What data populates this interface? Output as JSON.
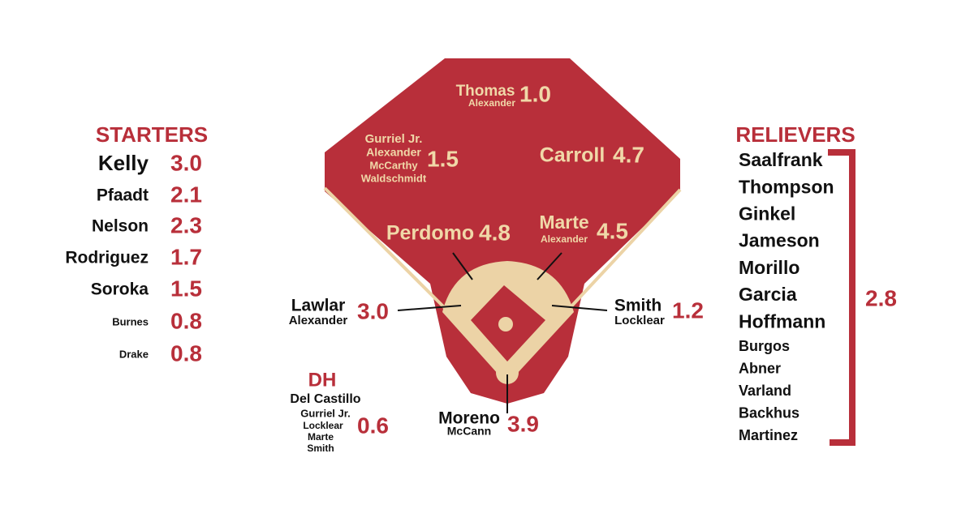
{
  "starters": {
    "title": "STARTERS",
    "players": [
      {
        "name": "Kelly",
        "value": "3.0"
      },
      {
        "name": "Pfaadt",
        "value": "2.1"
      },
      {
        "name": "Nelson",
        "value": "2.3"
      },
      {
        "name": "Rodriguez",
        "value": "1.7"
      },
      {
        "name": "Soroka",
        "value": "1.5"
      },
      {
        "name": "Burnes",
        "value": "0.8"
      },
      {
        "name": "Drake",
        "value": "0.8"
      }
    ]
  },
  "relievers": {
    "title": "RELIEVERS",
    "names": [
      "Saalfrank",
      "Thompson",
      "Ginkel",
      "Jameson",
      "Morillo",
      "Garcia",
      "Hoffmann",
      "Burgos",
      "Abner",
      "Varland",
      "Backhus",
      "Martinez"
    ],
    "value": "2.8"
  },
  "field": [
    {
      "names": [
        "Thomas",
        "Alexander"
      ],
      "value": "1.0"
    },
    {
      "names": [
        "Gurriel Jr.",
        "Alexander",
        "McCarthy",
        "Waldschmidt"
      ],
      "value": "1.5"
    },
    {
      "names": [
        "Carroll"
      ],
      "value": "4.7"
    },
    {
      "names": [
        "Perdomo"
      ],
      "value": "4.8"
    },
    {
      "names": [
        "Marte",
        "Alexander"
      ],
      "value": "4.5"
    },
    {
      "names": [
        "Lawlar",
        "Alexander"
      ],
      "value": "3.0"
    },
    {
      "names": [
        "Smith",
        "Locklear"
      ],
      "value": "1.2"
    },
    {
      "names": [
        "Moreno",
        "McCann"
      ],
      "value": "3.9"
    }
  ],
  "dh": {
    "title": "DH",
    "names": [
      "Del Castillo",
      "Gurriel Jr.",
      "Locklear",
      "Marte",
      "Smith"
    ],
    "value": "0.6"
  }
}
